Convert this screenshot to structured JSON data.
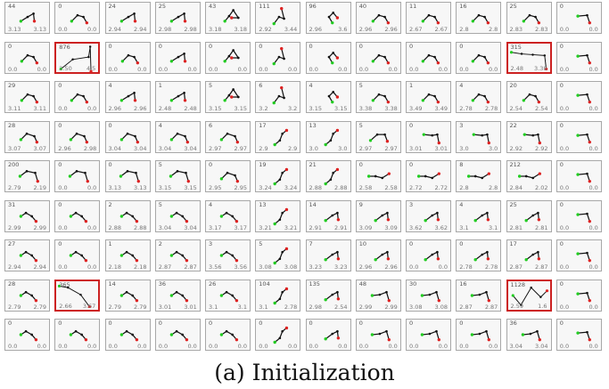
{
  "caption": "(a) Initialization",
  "colors": {
    "good": "#22cc22",
    "bad": "#dd2222",
    "arm": "#111111",
    "highlight": "#cc2222"
  },
  "rows": [
    [
      {
        "count": "44",
        "lv": "3.13",
        "rv": "3.13",
        "pose": "a"
      },
      {
        "count": "0",
        "lv": "0.0",
        "rv": "0.0",
        "pose": "c"
      },
      {
        "count": "24",
        "lv": "2.94",
        "rv": "2.94",
        "pose": "a"
      },
      {
        "count": "25",
        "lv": "2.98",
        "rv": "2.98",
        "pose": "a"
      },
      {
        "count": "43",
        "lv": "3.18",
        "rv": "3.18",
        "pose": "b"
      },
      {
        "count": "111",
        "lv": "2.92",
        "rv": "3.44",
        "pose": "d"
      },
      {
        "count": "96",
        "lv": "2.96",
        "rv": "3.6",
        "pose": "e"
      },
      {
        "count": "40",
        "lv": "2.96",
        "rv": "2.96",
        "pose": "c"
      },
      {
        "count": "11",
        "lv": "2.67",
        "rv": "2.67",
        "pose": "c"
      },
      {
        "count": "16",
        "lv": "2.8",
        "rv": "2.8",
        "pose": "c"
      },
      {
        "count": "25",
        "lv": "2.83",
        "rv": "2.83",
        "pose": "c"
      },
      {
        "count": "0",
        "lv": "0.0",
        "rv": "0.0",
        "pose": "f"
      }
    ],
    [
      {
        "count": "0",
        "lv": "0.0",
        "rv": "0.0",
        "pose": "c"
      },
      {
        "count": "876",
        "lv": "2.50",
        "rv": "4.5",
        "pose": "big1",
        "hl": true
      },
      {
        "count": "0",
        "lv": "0.0",
        "rv": "0.0",
        "pose": "c"
      },
      {
        "count": "0",
        "lv": "0.0",
        "rv": "0.0",
        "pose": "a"
      },
      {
        "count": "0",
        "lv": "0.0",
        "rv": "0.0",
        "pose": "b"
      },
      {
        "count": "0",
        "lv": "0.0",
        "rv": "0.0",
        "pose": "d"
      },
      {
        "count": "0",
        "lv": "0.0",
        "rv": "0.0",
        "pose": "e"
      },
      {
        "count": "0",
        "lv": "0.0",
        "rv": "0.0",
        "pose": "c"
      },
      {
        "count": "0",
        "lv": "0.0",
        "rv": "0.0",
        "pose": "c"
      },
      {
        "count": "0",
        "lv": "0.0",
        "rv": "0.0",
        "pose": "c"
      },
      {
        "count": "315",
        "lv": "2.48",
        "rv": "3.38",
        "pose": "big2",
        "hl": true
      },
      {
        "count": "0",
        "lv": "0.0",
        "rv": "0.0",
        "pose": "f"
      }
    ],
    [
      {
        "count": "29",
        "lv": "3.11",
        "rv": "3.11",
        "pose": "c"
      },
      {
        "count": "0",
        "lv": "0.0",
        "rv": "0.0",
        "pose": "c"
      },
      {
        "count": "4",
        "lv": "2.96",
        "rv": "2.96",
        "pose": "a"
      },
      {
        "count": "1",
        "lv": "2.48",
        "rv": "2.48",
        "pose": "a"
      },
      {
        "count": "5",
        "lv": "3.15",
        "rv": "3.15",
        "pose": "b"
      },
      {
        "count": "6",
        "lv": "3.2",
        "rv": "3.2",
        "pose": "d"
      },
      {
        "count": "4",
        "lv": "3.15",
        "rv": "3.15",
        "pose": "e"
      },
      {
        "count": "5",
        "lv": "3.38",
        "rv": "3.38",
        "pose": "c"
      },
      {
        "count": "1",
        "lv": "3.49",
        "rv": "3.49",
        "pose": "c"
      },
      {
        "count": "4",
        "lv": "2.78",
        "rv": "2.78",
        "pose": "c"
      },
      {
        "count": "20",
        "lv": "2.54",
        "rv": "2.54",
        "pose": "c"
      },
      {
        "count": "0",
        "lv": "0.0",
        "rv": "0.0",
        "pose": "f"
      }
    ],
    [
      {
        "count": "28",
        "lv": "3.07",
        "rv": "3.07",
        "pose": "g"
      },
      {
        "count": "0",
        "lv": "2.96",
        "rv": "2.98",
        "pose": "g"
      },
      {
        "count": "0",
        "lv": "3.04",
        "rv": "3.04",
        "pose": "g"
      },
      {
        "count": "4",
        "lv": "3.04",
        "rv": "3.04",
        "pose": "g"
      },
      {
        "count": "6",
        "lv": "2.97",
        "rv": "2.97",
        "pose": "g"
      },
      {
        "count": "17",
        "lv": "2.9",
        "rv": "2.9",
        "pose": "h"
      },
      {
        "count": "13",
        "lv": "3.0",
        "rv": "3.0",
        "pose": "h"
      },
      {
        "count": "5",
        "lv": "2.97",
        "rv": "2.97",
        "pose": "i"
      },
      {
        "count": "0",
        "lv": "3.01",
        "rv": "3.01",
        "pose": "j"
      },
      {
        "count": "3",
        "lv": "3.0",
        "rv": "3.0",
        "pose": "j"
      },
      {
        "count": "22",
        "lv": "2.92",
        "rv": "2.92",
        "pose": "j"
      },
      {
        "count": "0",
        "lv": "0.0",
        "rv": "0.0",
        "pose": "f"
      }
    ],
    [
      {
        "count": "200",
        "lv": "2.79",
        "rv": "2.19",
        "pose": "k"
      },
      {
        "count": "0",
        "lv": "0.0",
        "rv": "0.0",
        "pose": "k"
      },
      {
        "count": "0",
        "lv": "3.13",
        "rv": "3.13",
        "pose": "k"
      },
      {
        "count": "5",
        "lv": "3.15",
        "rv": "3.15",
        "pose": "k"
      },
      {
        "count": "0",
        "lv": "2.95",
        "rv": "2.95",
        "pose": "g"
      },
      {
        "count": "19",
        "lv": "3.24",
        "rv": "3.24",
        "pose": "h"
      },
      {
        "count": "21",
        "lv": "2.88",
        "rv": "2.88",
        "pose": "h"
      },
      {
        "count": "0",
        "lv": "2.58",
        "rv": "2.58",
        "pose": "l"
      },
      {
        "count": "0",
        "lv": "2.72",
        "rv": "2.72",
        "pose": "l"
      },
      {
        "count": "8",
        "lv": "2.8",
        "rv": "2.8",
        "pose": "l"
      },
      {
        "count": "212",
        "lv": "2.84",
        "rv": "2.02",
        "pose": "l"
      },
      {
        "count": "0",
        "lv": "0.0",
        "rv": "0.0",
        "pose": "f"
      }
    ],
    [
      {
        "count": "31",
        "lv": "2.99",
        "rv": "2.99",
        "pose": "m"
      },
      {
        "count": "0",
        "lv": "0.0",
        "rv": "0.0",
        "pose": "m"
      },
      {
        "count": "2",
        "lv": "2.88",
        "rv": "2.88",
        "pose": "m"
      },
      {
        "count": "5",
        "lv": "3.04",
        "rv": "3.04",
        "pose": "m"
      },
      {
        "count": "4",
        "lv": "3.17",
        "rv": "3.17",
        "pose": "m"
      },
      {
        "count": "13",
        "lv": "3.21",
        "rv": "3.21",
        "pose": "h"
      },
      {
        "count": "14",
        "lv": "2.91",
        "rv": "2.91",
        "pose": "n"
      },
      {
        "count": "9",
        "lv": "3.09",
        "rv": "3.09",
        "pose": "n"
      },
      {
        "count": "3",
        "lv": "3.62",
        "rv": "3.62",
        "pose": "n"
      },
      {
        "count": "4",
        "lv": "3.1",
        "rv": "3.1",
        "pose": "n"
      },
      {
        "count": "25",
        "lv": "2.81",
        "rv": "2.81",
        "pose": "n"
      },
      {
        "count": "0",
        "lv": "0.0",
        "rv": "0.0",
        "pose": "f"
      }
    ],
    [
      {
        "count": "27",
        "lv": "2.94",
        "rv": "2.94",
        "pose": "m"
      },
      {
        "count": "0",
        "lv": "0.0",
        "rv": "0.0",
        "pose": "m"
      },
      {
        "count": "1",
        "lv": "2.18",
        "rv": "2.18",
        "pose": "m"
      },
      {
        "count": "2",
        "lv": "2.87",
        "rv": "2.87",
        "pose": "m"
      },
      {
        "count": "3",
        "lv": "3.56",
        "rv": "3.56",
        "pose": "m"
      },
      {
        "count": "5",
        "lv": "3.08",
        "rv": "3.08",
        "pose": "h"
      },
      {
        "count": "7",
        "lv": "3.23",
        "rv": "3.23",
        "pose": "n"
      },
      {
        "count": "10",
        "lv": "2.96",
        "rv": "2.96",
        "pose": "n"
      },
      {
        "count": "0",
        "lv": "0.0",
        "rv": "0.0",
        "pose": "n"
      },
      {
        "count": "0",
        "lv": "2.78",
        "rv": "2.78",
        "pose": "n"
      },
      {
        "count": "17",
        "lv": "2.87",
        "rv": "2.87",
        "pose": "n"
      },
      {
        "count": "0",
        "lv": "0.0",
        "rv": "0.0",
        "pose": "f"
      }
    ],
    [
      {
        "count": "28",
        "lv": "2.79",
        "rv": "2.79",
        "pose": "m"
      },
      {
        "count": "365",
        "lv": "2.66",
        "rv": "3.67",
        "pose": "big3",
        "hl": true
      },
      {
        "count": "14",
        "lv": "2.79",
        "rv": "2.79",
        "pose": "m"
      },
      {
        "count": "36",
        "lv": "3.01",
        "rv": "3.01",
        "pose": "m"
      },
      {
        "count": "26",
        "lv": "3.1",
        "rv": "3.1",
        "pose": "m"
      },
      {
        "count": "104",
        "lv": "3.1",
        "rv": "2.78",
        "pose": "h"
      },
      {
        "count": "135",
        "lv": "2.98",
        "rv": "2.54",
        "pose": "n"
      },
      {
        "count": "48",
        "lv": "2.99",
        "rv": "2.99",
        "pose": "o"
      },
      {
        "count": "30",
        "lv": "3.08",
        "rv": "3.08",
        "pose": "o"
      },
      {
        "count": "16",
        "lv": "2.87",
        "rv": "2.87",
        "pose": "o"
      },
      {
        "count": "1128",
        "lv": "2.59",
        "rv": "1.6",
        "pose": "big4",
        "hl": true
      },
      {
        "count": "0",
        "lv": "0.0",
        "rv": "0.0",
        "pose": "f"
      }
    ],
    [
      {
        "count": "0",
        "lv": "0.0",
        "rv": "0.0",
        "pose": "m"
      },
      {
        "count": "0",
        "lv": "0.0",
        "rv": "0.0",
        "pose": "m"
      },
      {
        "count": "0",
        "lv": "0.0",
        "rv": "0.0",
        "pose": "m"
      },
      {
        "count": "0",
        "lv": "0.0",
        "rv": "0.0",
        "pose": "m"
      },
      {
        "count": "0",
        "lv": "0.0",
        "rv": "0.0",
        "pose": "m"
      },
      {
        "count": "0",
        "lv": "0.0",
        "rv": "0.0",
        "pose": "h"
      },
      {
        "count": "0",
        "lv": "0.0",
        "rv": "0.0",
        "pose": "n"
      },
      {
        "count": "0",
        "lv": "0.0",
        "rv": "0.0",
        "pose": "o"
      },
      {
        "count": "0",
        "lv": "0.0",
        "rv": "0.0",
        "pose": "o"
      },
      {
        "count": "0",
        "lv": "0.0",
        "rv": "0.0",
        "pose": "o"
      },
      {
        "count": "36",
        "lv": "3.04",
        "rv": "3.04",
        "pose": "o"
      },
      {
        "count": "0",
        "lv": "0.0",
        "rv": "0.0",
        "pose": "f"
      }
    ]
  ]
}
